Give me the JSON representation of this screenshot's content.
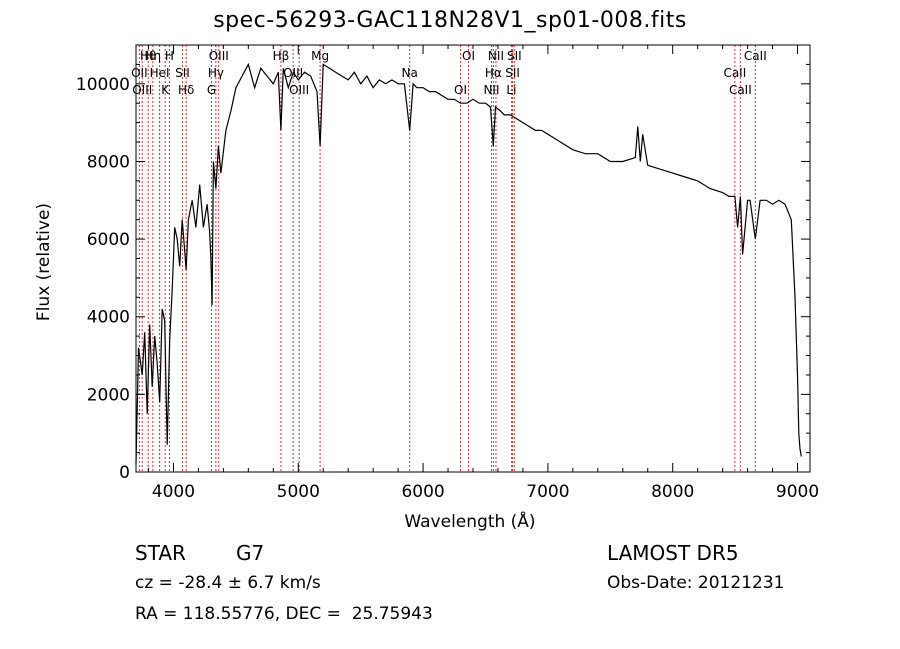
{
  "title": "spec-56293-GAC118N28V1_sp01-008.fits",
  "object_class": "STAR",
  "subclass": "G7",
  "survey": "LAMOST DR5",
  "cz_text": "cz = -28.4 ± 6.7 km/s",
  "obs_date_text": "Obs-Date: 20121231",
  "coords_text": "RA = 118.55776, DEC =  25.75943",
  "colors": {
    "spectrum": "#000000",
    "line_markers": "#cc3333",
    "axes": "#000000",
    "background": "#ffffff"
  },
  "chart_data": {
    "type": "line",
    "title": "spec-56293-GAC118N28V1_sp01-008.fits",
    "xlabel": "Wavelength (Å)",
    "ylabel": "Flux (relative)",
    "xlim": [
      3700,
      9100
    ],
    "ylim": [
      0,
      11000
    ],
    "x_ticks": [
      4000,
      5000,
      6000,
      7000,
      8000,
      9000
    ],
    "y_ticks": [
      0,
      2000,
      4000,
      6000,
      8000,
      10000
    ],
    "x_tick_labels": [
      "4000",
      "5000",
      "6000",
      "7000",
      "8000",
      "9000"
    ],
    "y_tick_labels": [
      "0",
      "2000",
      "4000",
      "6000",
      "8000",
      "10000"
    ],
    "grid": false,
    "series": [
      {
        "x": [
          3700,
          3720,
          3750,
          3770,
          3790,
          3810,
          3830,
          3850,
          3870,
          3890,
          3910,
          3930,
          3950,
          3970,
          3990,
          4010,
          4030,
          4050,
          4070,
          4090,
          4101,
          4120,
          4150,
          4180,
          4210,
          4240,
          4270,
          4290,
          4300,
          4310,
          4320,
          4340,
          4360,
          4380,
          4420,
          4460,
          4500,
          4550,
          4600,
          4650,
          4700,
          4750,
          4800,
          4840,
          4861,
          4880,
          4920,
          4960,
          5000,
          5050,
          5100,
          5150,
          5175,
          5200,
          5250,
          5300,
          5350,
          5400,
          5450,
          5500,
          5550,
          5600,
          5650,
          5700,
          5750,
          5800,
          5850,
          5893,
          5920,
          5950,
          6000,
          6050,
          6100,
          6150,
          6200,
          6250,
          6300,
          6350,
          6400,
          6450,
          6500,
          6540,
          6563,
          6580,
          6620,
          6650,
          6700,
          6750,
          6800,
          6850,
          6900,
          6950,
          7000,
          7100,
          7200,
          7300,
          7400,
          7500,
          7600,
          7700,
          7720,
          7740,
          7760,
          7800,
          7900,
          8000,
          8100,
          8200,
          8300,
          8400,
          8450,
          8498,
          8520,
          8542,
          8560,
          8600,
          8620,
          8662,
          8700,
          8750,
          8800,
          8850,
          8900,
          8950,
          8980,
          9000,
          9010,
          9020,
          9030
        ],
        "y": [
          200,
          3200,
          2500,
          3600,
          1500,
          3800,
          2200,
          3500,
          2800,
          1800,
          4200,
          3900,
          700,
          3400,
          4700,
          6300,
          6000,
          5300,
          6500,
          5700,
          5200,
          6500,
          7000,
          6300,
          7400,
          6300,
          6900,
          6200,
          5500,
          4300,
          8000,
          7300,
          8400,
          7700,
          8800,
          9300,
          9900,
          10200,
          10500,
          9900,
          10400,
          10200,
          10000,
          10300,
          8800,
          10400,
          9900,
          10300,
          10100,
          10300,
          10200,
          9800,
          8400,
          10500,
          10400,
          10300,
          10200,
          10100,
          10300,
          10000,
          10200,
          9900,
          10100,
          10000,
          10100,
          10000,
          10000,
          8800,
          10000,
          9900,
          9900,
          9800,
          9800,
          9700,
          9600,
          9600,
          9500,
          9500,
          9600,
          9500,
          9500,
          9400,
          8400,
          9400,
          9300,
          9200,
          9200,
          9100,
          9000,
          8900,
          8800,
          8800,
          8700,
          8500,
          8300,
          8200,
          8200,
          8000,
          8000,
          8100,
          8900,
          8000,
          8700,
          7900,
          7800,
          7700,
          7600,
          7500,
          7300,
          7200,
          7100,
          7100,
          6300,
          7100,
          5600,
          7000,
          7000,
          6000,
          7000,
          7000,
          6900,
          7000,
          6900,
          6500,
          4500,
          2500,
          1000,
          600,
          400
        ]
      }
    ],
    "line_markers": [
      {
        "label": "Hθ",
        "x": 3798
      },
      {
        "label": "OII",
        "x": 3727
      },
      {
        "label": "OIII",
        "x": 3750
      },
      {
        "label": "Hη",
        "x": 3835
      },
      {
        "label": "HeI",
        "x": 3889
      },
      {
        "label": "K",
        "x": 3934
      },
      {
        "label": "H",
        "x": 3968
      },
      {
        "label": "SII",
        "x": 4072
      },
      {
        "label": "Hδ",
        "x": 4102
      },
      {
        "label": "OIII",
        "x": 4363
      },
      {
        "label": "Hγ",
        "x": 4340
      },
      {
        "label": "G",
        "x": 4305
      },
      {
        "label": "Hβ",
        "x": 4861
      },
      {
        "label": "OIII",
        "x": 4959
      },
      {
        "label": "OIII",
        "x": 5007
      },
      {
        "label": "Mg",
        "x": 5175
      },
      {
        "label": "Na",
        "x": 5893
      },
      {
        "label": "OI",
        "x": 6300
      },
      {
        "label": "OI",
        "x": 6364
      },
      {
        "label": "Hα",
        "x": 6563
      },
      {
        "label": "NII",
        "x": 6548
      },
      {
        "label": "NII",
        "x": 6584
      },
      {
        "label": "SII",
        "x": 6717
      },
      {
        "label": "Li",
        "x": 6708
      },
      {
        "label": "SII",
        "x": 6731
      },
      {
        "label": "CaII",
        "x": 8498
      },
      {
        "label": "CaII",
        "x": 8542
      },
      {
        "label": "CaII",
        "x": 8662
      }
    ]
  }
}
